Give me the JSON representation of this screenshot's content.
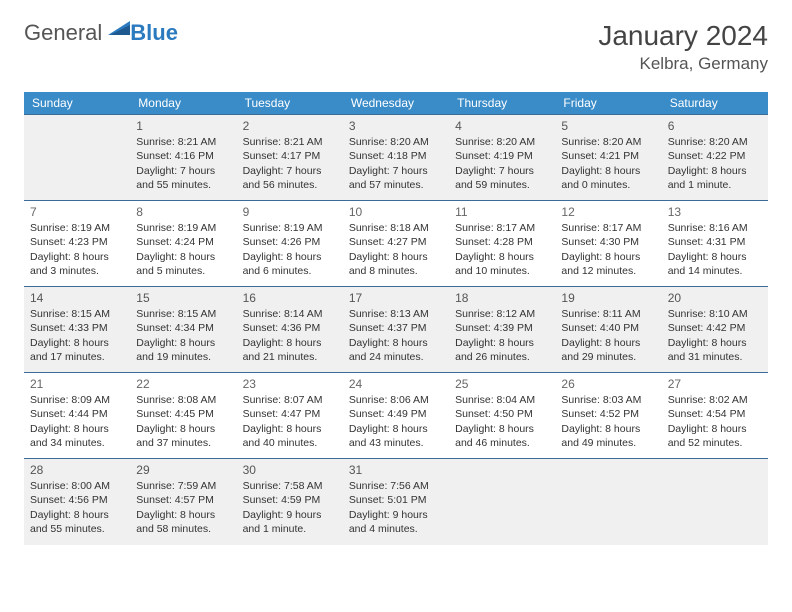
{
  "logo": {
    "word1": "General",
    "word2": "Blue"
  },
  "title": "January 2024",
  "location": "Kelbra, Germany",
  "dayNames": [
    "Sunday",
    "Monday",
    "Tuesday",
    "Wednesday",
    "Thursday",
    "Friday",
    "Saturday"
  ],
  "colors": {
    "headerBg": "#3a8cc9",
    "headerText": "#ffffff",
    "cellBorder": "#3a6b9a",
    "shadeBg": "#f0f0f0",
    "text": "#333333",
    "accent": "#2b7ac0"
  },
  "typography": {
    "title_fontsize": 28,
    "location_fontsize": 17,
    "dayhead_fontsize": 12,
    "daynum_fontsize": 12,
    "cell_fontsize": 10.5
  },
  "layout": {
    "leading_blanks": 1,
    "weeks": 5,
    "shaded_rows": [
      0,
      2,
      4
    ]
  },
  "days": [
    {
      "n": "1",
      "sr": "Sunrise: 8:21 AM",
      "ss": "Sunset: 4:16 PM",
      "d1": "Daylight: 7 hours",
      "d2": "and 55 minutes."
    },
    {
      "n": "2",
      "sr": "Sunrise: 8:21 AM",
      "ss": "Sunset: 4:17 PM",
      "d1": "Daylight: 7 hours",
      "d2": "and 56 minutes."
    },
    {
      "n": "3",
      "sr": "Sunrise: 8:20 AM",
      "ss": "Sunset: 4:18 PM",
      "d1": "Daylight: 7 hours",
      "d2": "and 57 minutes."
    },
    {
      "n": "4",
      "sr": "Sunrise: 8:20 AM",
      "ss": "Sunset: 4:19 PM",
      "d1": "Daylight: 7 hours",
      "d2": "and 59 minutes."
    },
    {
      "n": "5",
      "sr": "Sunrise: 8:20 AM",
      "ss": "Sunset: 4:21 PM",
      "d1": "Daylight: 8 hours",
      "d2": "and 0 minutes."
    },
    {
      "n": "6",
      "sr": "Sunrise: 8:20 AM",
      "ss": "Sunset: 4:22 PM",
      "d1": "Daylight: 8 hours",
      "d2": "and 1 minute."
    },
    {
      "n": "7",
      "sr": "Sunrise: 8:19 AM",
      "ss": "Sunset: 4:23 PM",
      "d1": "Daylight: 8 hours",
      "d2": "and 3 minutes."
    },
    {
      "n": "8",
      "sr": "Sunrise: 8:19 AM",
      "ss": "Sunset: 4:24 PM",
      "d1": "Daylight: 8 hours",
      "d2": "and 5 minutes."
    },
    {
      "n": "9",
      "sr": "Sunrise: 8:19 AM",
      "ss": "Sunset: 4:26 PM",
      "d1": "Daylight: 8 hours",
      "d2": "and 6 minutes."
    },
    {
      "n": "10",
      "sr": "Sunrise: 8:18 AM",
      "ss": "Sunset: 4:27 PM",
      "d1": "Daylight: 8 hours",
      "d2": "and 8 minutes."
    },
    {
      "n": "11",
      "sr": "Sunrise: 8:17 AM",
      "ss": "Sunset: 4:28 PM",
      "d1": "Daylight: 8 hours",
      "d2": "and 10 minutes."
    },
    {
      "n": "12",
      "sr": "Sunrise: 8:17 AM",
      "ss": "Sunset: 4:30 PM",
      "d1": "Daylight: 8 hours",
      "d2": "and 12 minutes."
    },
    {
      "n": "13",
      "sr": "Sunrise: 8:16 AM",
      "ss": "Sunset: 4:31 PM",
      "d1": "Daylight: 8 hours",
      "d2": "and 14 minutes."
    },
    {
      "n": "14",
      "sr": "Sunrise: 8:15 AM",
      "ss": "Sunset: 4:33 PM",
      "d1": "Daylight: 8 hours",
      "d2": "and 17 minutes."
    },
    {
      "n": "15",
      "sr": "Sunrise: 8:15 AM",
      "ss": "Sunset: 4:34 PM",
      "d1": "Daylight: 8 hours",
      "d2": "and 19 minutes."
    },
    {
      "n": "16",
      "sr": "Sunrise: 8:14 AM",
      "ss": "Sunset: 4:36 PM",
      "d1": "Daylight: 8 hours",
      "d2": "and 21 minutes."
    },
    {
      "n": "17",
      "sr": "Sunrise: 8:13 AM",
      "ss": "Sunset: 4:37 PM",
      "d1": "Daylight: 8 hours",
      "d2": "and 24 minutes."
    },
    {
      "n": "18",
      "sr": "Sunrise: 8:12 AM",
      "ss": "Sunset: 4:39 PM",
      "d1": "Daylight: 8 hours",
      "d2": "and 26 minutes."
    },
    {
      "n": "19",
      "sr": "Sunrise: 8:11 AM",
      "ss": "Sunset: 4:40 PM",
      "d1": "Daylight: 8 hours",
      "d2": "and 29 minutes."
    },
    {
      "n": "20",
      "sr": "Sunrise: 8:10 AM",
      "ss": "Sunset: 4:42 PM",
      "d1": "Daylight: 8 hours",
      "d2": "and 31 minutes."
    },
    {
      "n": "21",
      "sr": "Sunrise: 8:09 AM",
      "ss": "Sunset: 4:44 PM",
      "d1": "Daylight: 8 hours",
      "d2": "and 34 minutes."
    },
    {
      "n": "22",
      "sr": "Sunrise: 8:08 AM",
      "ss": "Sunset: 4:45 PM",
      "d1": "Daylight: 8 hours",
      "d2": "and 37 minutes."
    },
    {
      "n": "23",
      "sr": "Sunrise: 8:07 AM",
      "ss": "Sunset: 4:47 PM",
      "d1": "Daylight: 8 hours",
      "d2": "and 40 minutes."
    },
    {
      "n": "24",
      "sr": "Sunrise: 8:06 AM",
      "ss": "Sunset: 4:49 PM",
      "d1": "Daylight: 8 hours",
      "d2": "and 43 minutes."
    },
    {
      "n": "25",
      "sr": "Sunrise: 8:04 AM",
      "ss": "Sunset: 4:50 PM",
      "d1": "Daylight: 8 hours",
      "d2": "and 46 minutes."
    },
    {
      "n": "26",
      "sr": "Sunrise: 8:03 AM",
      "ss": "Sunset: 4:52 PM",
      "d1": "Daylight: 8 hours",
      "d2": "and 49 minutes."
    },
    {
      "n": "27",
      "sr": "Sunrise: 8:02 AM",
      "ss": "Sunset: 4:54 PM",
      "d1": "Daylight: 8 hours",
      "d2": "and 52 minutes."
    },
    {
      "n": "28",
      "sr": "Sunrise: 8:00 AM",
      "ss": "Sunset: 4:56 PM",
      "d1": "Daylight: 8 hours",
      "d2": "and 55 minutes."
    },
    {
      "n": "29",
      "sr": "Sunrise: 7:59 AM",
      "ss": "Sunset: 4:57 PM",
      "d1": "Daylight: 8 hours",
      "d2": "and 58 minutes."
    },
    {
      "n": "30",
      "sr": "Sunrise: 7:58 AM",
      "ss": "Sunset: 4:59 PM",
      "d1": "Daylight: 9 hours",
      "d2": "and 1 minute."
    },
    {
      "n": "31",
      "sr": "Sunrise: 7:56 AM",
      "ss": "Sunset: 5:01 PM",
      "d1": "Daylight: 9 hours",
      "d2": "and 4 minutes."
    }
  ]
}
